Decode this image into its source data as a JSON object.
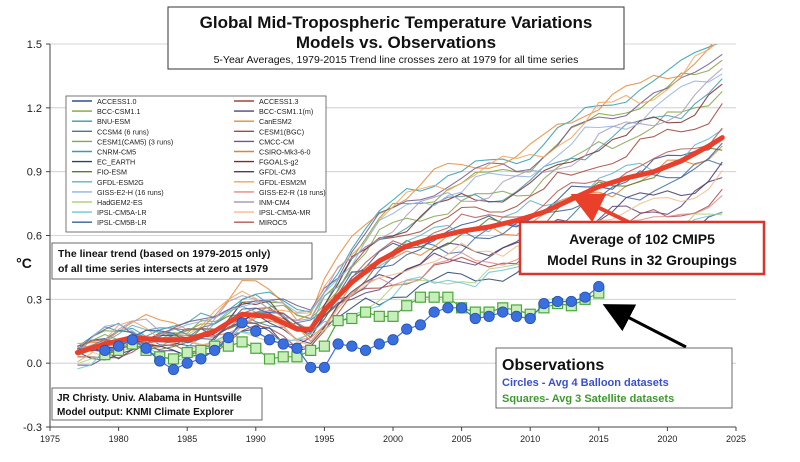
{
  "chart_data": {
    "type": "line",
    "title": "Global Mid-Tropospheric Temperature Variations",
    "title_line2": "Models vs. Observations",
    "subtitle": "5-Year Averages, 1979-2015 Trend line crosses zero at 1979 for all time series",
    "ylabel": "°C",
    "xlabel": "",
    "xlim": [
      1975,
      2025
    ],
    "ylim": [
      -0.3,
      1.5
    ],
    "xticks": [
      1975,
      1980,
      1985,
      1990,
      1995,
      2000,
      2005,
      2010,
      2015,
      2020,
      2025
    ],
    "yticks": [
      -0.3,
      0.0,
      0.3,
      0.6,
      0.9,
      1.2,
      1.5
    ],
    "ytick_labels": [
      "-0.3",
      "0.0",
      "0.3",
      "0.6",
      "0.9",
      "1.2",
      "1.5"
    ],
    "grid": "horizontal",
    "legend_position": "top-left",
    "legend_entries": [
      {
        "name": "ACCESS1.0",
        "color": "#2f4f8f"
      },
      {
        "name": "ACCESS1.3",
        "color": "#a0463a"
      },
      {
        "name": "BCC-CSM1.1",
        "color": "#7fa33a"
      },
      {
        "name": "BCC-CSM1.1(m)",
        "color": "#5b3f7a"
      },
      {
        "name": "BNU-ESM",
        "color": "#2f9bb0"
      },
      {
        "name": "CanESM2",
        "color": "#e8893a"
      },
      {
        "name": "CCSM4 (6 runs)",
        "color": "#4572a7"
      },
      {
        "name": "CESM1(BGC)",
        "color": "#aa4643"
      },
      {
        "name": "CESM1(CAM5) (3 runs)",
        "color": "#89a54e"
      },
      {
        "name": "CMCC-CM",
        "color": "#71588f"
      },
      {
        "name": "CNRM-CM5",
        "color": "#4198af"
      },
      {
        "name": "CSIRO-Mk3-6-0",
        "color": "#db843d"
      },
      {
        "name": "EC_EARTH",
        "color": "#23436e"
      },
      {
        "name": "FGOALS-g2",
        "color": "#7a2d2a"
      },
      {
        "name": "FIO-ESM",
        "color": "#5e7a2b"
      },
      {
        "name": "GFDL-CM3",
        "color": "#4a3a66"
      },
      {
        "name": "GFDL-ESM2G",
        "color": "#5fb3c8"
      },
      {
        "name": "GFDL-ESM2M",
        "color": "#f2a45f"
      },
      {
        "name": "GISS-E2-H (16 runs)",
        "color": "#8fb4e3"
      },
      {
        "name": "GISS-E2-R (18 runs)",
        "color": "#e08a88"
      },
      {
        "name": "HadGEM2-ES",
        "color": "#b7cf7e"
      },
      {
        "name": "INM-CM4",
        "color": "#a99bc1"
      },
      {
        "name": "IPSL-CM5A-LR",
        "color": "#6cc5d9"
      },
      {
        "name": "IPSL-CM5A-MR",
        "color": "#f5bb8a"
      },
      {
        "name": "IPSL-CM5B-LR",
        "color": "#3a5f96"
      },
      {
        "name": "MIROC5",
        "color": "#b35a55"
      }
    ],
    "model_average": {
      "name": "Average of 102 CMIP5 Model Runs in 32 Groupings",
      "color": "#e8402a",
      "x": [
        1977,
        1979,
        1981,
        1983,
        1985,
        1987,
        1989,
        1991,
        1993,
        1994,
        1995,
        1997,
        1999,
        2001,
        2003,
        2005,
        2007,
        2009,
        2011,
        2013,
        2015,
        2017,
        2019,
        2021,
        2023,
        2024
      ],
      "y": [
        0.05,
        0.09,
        0.12,
        0.11,
        0.11,
        0.15,
        0.23,
        0.22,
        0.16,
        0.16,
        0.25,
        0.38,
        0.48,
        0.55,
        0.59,
        0.62,
        0.64,
        0.67,
        0.71,
        0.77,
        0.83,
        0.87,
        0.9,
        0.95,
        1.02,
        1.06
      ]
    },
    "balloons": {
      "name": "Circles - Avg 4 Balloon datasets",
      "color": "#3a6fe0",
      "x": [
        1979,
        1980,
        1981,
        1982,
        1983,
        1984,
        1985,
        1986,
        1987,
        1988,
        1989,
        1990,
        1991,
        1992,
        1993,
        1994,
        1995,
        1996,
        1997,
        1998,
        1999,
        2000,
        2001,
        2002,
        2003,
        2004,
        2005,
        2006,
        2007,
        2008,
        2009,
        2010,
        2011,
        2012,
        2013,
        2014,
        2015
      ],
      "y": [
        0.06,
        0.08,
        0.11,
        0.07,
        0.01,
        -0.03,
        0.0,
        0.02,
        0.06,
        0.12,
        0.19,
        0.15,
        0.11,
        0.09,
        0.07,
        -0.02,
        -0.02,
        0.09,
        0.08,
        0.06,
        0.09,
        0.11,
        0.16,
        0.18,
        0.24,
        0.26,
        0.26,
        0.21,
        0.22,
        0.24,
        0.22,
        0.21,
        0.28,
        0.29,
        0.29,
        0.31,
        0.36
      ]
    },
    "satellites": {
      "name": "Squares- Avg 3 Satellite datasets",
      "color": "#4aa83a",
      "x": [
        1979,
        1980,
        1981,
        1982,
        1983,
        1984,
        1985,
        1986,
        1987,
        1988,
        1989,
        1990,
        1991,
        1992,
        1993,
        1994,
        1995,
        1996,
        1997,
        1998,
        1999,
        2000,
        2001,
        2002,
        2003,
        2004,
        2005,
        2006,
        2007,
        2008,
        2009,
        2010,
        2011,
        2012,
        2013,
        2014,
        2015
      ],
      "y": [
        0.04,
        0.06,
        0.09,
        0.06,
        0.03,
        0.02,
        0.05,
        0.06,
        0.08,
        0.08,
        0.1,
        0.07,
        0.02,
        0.03,
        0.03,
        0.06,
        0.08,
        0.2,
        0.21,
        0.24,
        0.22,
        0.22,
        0.27,
        0.31,
        0.31,
        0.31,
        0.26,
        0.24,
        0.24,
        0.26,
        0.25,
        0.23,
        0.26,
        0.28,
        0.27,
        0.3,
        0.33
      ]
    },
    "annotations": {
      "trend_note": [
        "The linear trend (based on 1979-2015 only)",
        "of all time series intersects at zero at 1979"
      ],
      "average_box": [
        "Average of 102 CMIP5",
        "Model Runs in 32 Groupings"
      ],
      "observations_heading": "Observations",
      "credit": [
        "JR Christy. Univ. Alabama in Huntsville",
        "Model output: KNMI Climate Explorer"
      ]
    }
  }
}
